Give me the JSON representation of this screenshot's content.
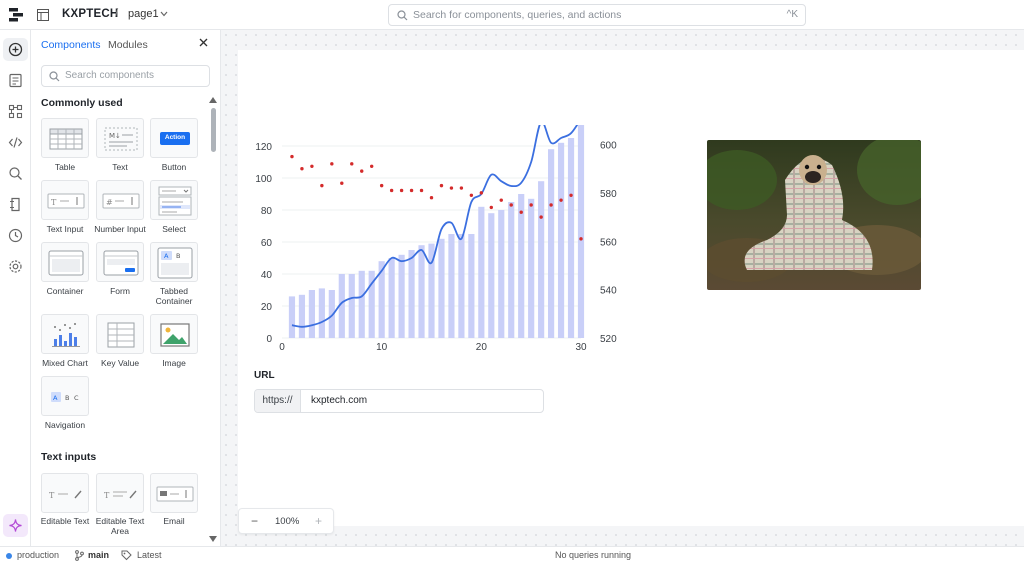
{
  "topbar": {
    "app_name": "KXPTECH",
    "separator": "/",
    "page_name": "page1",
    "search_placeholder": "Search for components, queries, and actions",
    "shortcut": "^K"
  },
  "panel": {
    "tabs": [
      "Components",
      "Modules"
    ],
    "search_placeholder": "Search components",
    "sections": [
      {
        "title": "Commonly used",
        "items": [
          {
            "label": "Table",
            "icon": "table-icon"
          },
          {
            "label": "Text",
            "icon": "markdown-text-icon"
          },
          {
            "label": "Button",
            "icon": "button-icon",
            "button_text": "Action"
          },
          {
            "label": "Text Input",
            "icon": "text-input-icon"
          },
          {
            "label": "Number Input",
            "icon": "number-input-icon"
          },
          {
            "label": "Select",
            "icon": "select-icon"
          },
          {
            "label": "Container",
            "icon": "container-icon"
          },
          {
            "label": "Form",
            "icon": "form-icon"
          },
          {
            "label": "Tabbed Container",
            "icon": "tabbed-container-icon"
          },
          {
            "label": "Mixed Chart",
            "icon": "mixed-chart-icon"
          },
          {
            "label": "Key Value",
            "icon": "key-value-icon"
          },
          {
            "label": "Image",
            "icon": "image-icon"
          },
          {
            "label": "Navigation",
            "icon": "navigation-icon"
          }
        ]
      },
      {
        "title": "Text inputs",
        "items": [
          {
            "label": "Editable Text",
            "icon": "editable-text-icon"
          },
          {
            "label": "Editable Text Area",
            "icon": "editable-text-area-icon"
          },
          {
            "label": "Email",
            "icon": "email-icon"
          }
        ]
      }
    ]
  },
  "canvas": {
    "url_label": "URL",
    "url_prefix": "https://",
    "url_value": "kxptech.com",
    "zoom": "100%"
  },
  "chart_data": {
    "type": "bar",
    "title": "",
    "xlabel": "",
    "ylabel": "",
    "x": [
      1,
      2,
      3,
      4,
      5,
      6,
      7,
      8,
      9,
      10,
      11,
      12,
      13,
      14,
      15,
      16,
      17,
      18,
      19,
      20,
      21,
      22,
      23,
      24,
      25,
      26,
      27,
      28,
      29,
      30
    ],
    "x_ticks": [
      0,
      10,
      20,
      30
    ],
    "y_left_ticks": [
      0,
      20,
      40,
      60,
      80,
      100,
      120
    ],
    "y_left_range": [
      0,
      130
    ],
    "y_right_ticks": [
      520,
      540,
      560,
      580,
      600
    ],
    "y_right_range": [
      520,
      606
    ],
    "series": [
      {
        "type": "bar",
        "axis": "left",
        "color": "#c9cff8",
        "values": [
          26,
          27,
          30,
          31,
          30,
          40,
          40,
          42,
          42,
          48,
          50,
          52,
          55,
          58,
          59,
          62,
          65,
          65,
          65,
          82,
          78,
          80,
          85,
          90,
          87,
          98,
          118,
          122,
          125,
          138
        ]
      },
      {
        "type": "line",
        "axis": "left",
        "color": "#3b6fe0",
        "values": [
          8,
          7,
          8,
          10,
          14,
          22,
          25,
          26,
          34,
          42,
          50,
          48,
          50,
          55,
          47,
          68,
          72,
          62,
          85,
          90,
          102,
          98,
          95,
          97,
          110,
          135,
          122,
          125,
          128,
          137
        ]
      },
      {
        "type": "scatter",
        "axis": "right",
        "color": "#d42b2b",
        "values": [
          595,
          590,
          591,
          583,
          592,
          584,
          592,
          589,
          591,
          583,
          581,
          581,
          581,
          581,
          578,
          583,
          582,
          582,
          579,
          580,
          574,
          577,
          575,
          572,
          575,
          570,
          575,
          577,
          579,
          561
        ]
      }
    ]
  },
  "status": {
    "environment": "production",
    "branch": "main",
    "version": "Latest",
    "queries": "No queries running"
  },
  "colors": {
    "accent": "#1a6ff0",
    "canvas_bg": "#f4f5f7"
  }
}
